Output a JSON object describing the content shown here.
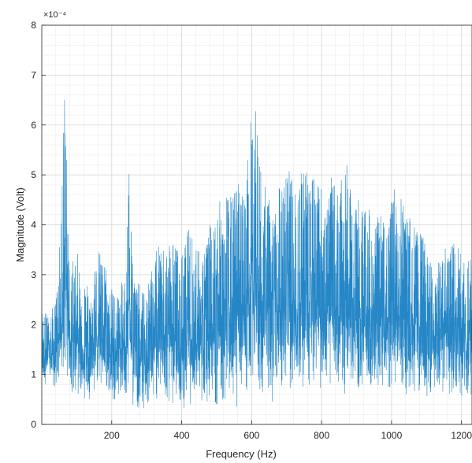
{
  "chart_data": {
    "type": "line",
    "title": "",
    "xlabel": "Frequency (Hz)",
    "ylabel": "Magnitude (Volt)",
    "y_exponent_label": "×10⁻⁴",
    "xlim": [
      0,
      1230
    ],
    "ylim": [
      0,
      8
    ],
    "x_ticks": [
      200,
      400,
      600,
      800,
      1000,
      1200
    ],
    "y_ticks": [
      0,
      1,
      2,
      3,
      4,
      5,
      6,
      7,
      8
    ],
    "y_scale_factor": 0.0001,
    "grid": "on (major and minor)",
    "legend": "none",
    "series": [
      {
        "color": "#0072BD",
        "envelope": {
          "x": [
            0,
            20,
            40,
            55,
            65,
            80,
            100,
            120,
            140,
            160,
            180,
            200,
            220,
            240,
            250,
            260,
            280,
            300,
            320,
            340,
            360,
            380,
            400,
            420,
            440,
            460,
            480,
            500,
            520,
            540,
            560,
            580,
            600,
            615,
            630,
            650,
            670,
            690,
            710,
            730,
            750,
            770,
            790,
            810,
            830,
            850,
            870,
            890,
            910,
            930,
            950,
            970,
            990,
            1010,
            1030,
            1050,
            1070,
            1090,
            1110,
            1130,
            1150,
            1170,
            1190,
            1210,
            1230
          ],
          "low": [
            0.7,
            0.8,
            0.6,
            0.5,
            0.7,
            0.6,
            0.5,
            0.4,
            0.5,
            0.6,
            0.5,
            0.4,
            0.5,
            0.4,
            0.6,
            0.3,
            0.2,
            0.3,
            0.3,
            0.4,
            0.3,
            0.3,
            0.2,
            0.3,
            0.4,
            0.3,
            0.4,
            0.3,
            0.3,
            0.3,
            0.2,
            0.3,
            0.4,
            0.4,
            0.3,
            0.4,
            0.4,
            0.5,
            0.5,
            0.5,
            0.6,
            0.5,
            0.6,
            0.6,
            0.5,
            0.4,
            0.5,
            0.4,
            0.5,
            0.4,
            0.5,
            0.4,
            0.3,
            0.4,
            0.4,
            0.5,
            0.5,
            0.4,
            0.5,
            0.4,
            0.5,
            0.5,
            0.5,
            0.4,
            0.4
          ],
          "high": [
            2.4,
            2.2,
            2.5,
            4.0,
            7.0,
            3.2,
            3.5,
            3.0,
            2.6,
            3.6,
            3.2,
            2.8,
            2.6,
            3.2,
            5.7,
            3.3,
            2.8,
            2.6,
            3.5,
            3.6,
            3.8,
            3.7,
            3.4,
            4.0,
            3.6,
            3.4,
            4.0,
            4.4,
            4.6,
            4.6,
            5.0,
            4.7,
            6.4,
            6.3,
            5.0,
            4.6,
            4.4,
            5.2,
            5.2,
            4.6,
            5.5,
            4.9,
            5.2,
            4.6,
            5.0,
            4.7,
            5.3,
            4.3,
            4.6,
            4.4,
            4.1,
            4.2,
            4.2,
            4.9,
            4.5,
            4.2,
            3.9,
            3.8,
            3.3,
            3.2,
            3.5,
            3.8,
            3.6,
            3.4,
            3.4
          ]
        }
      }
    ]
  }
}
